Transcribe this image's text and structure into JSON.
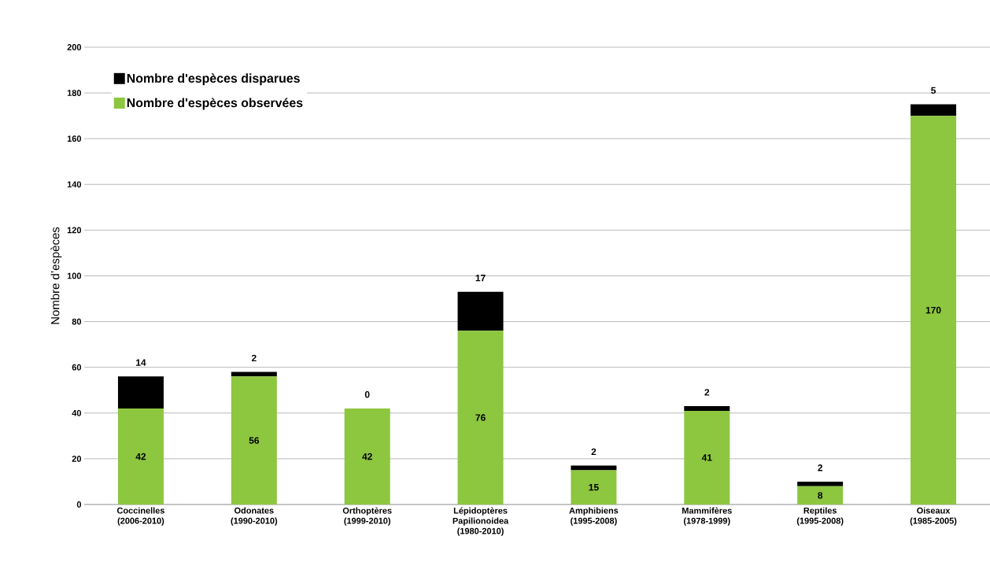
{
  "chart_data": {
    "type": "bar",
    "stacked": true,
    "ylabel": "Nombre d’espèces",
    "categories": [
      "Coccinelles (2006-2010)",
      "Odonates (1990-2010)",
      "Orthoptères (1999-2010)",
      "Lépidoptères Papilionoidea (1980-2010)",
      "Amphibiens (1995-2008)",
      "Mammifères (1978-1999)",
      "Reptiles (1995-2008)",
      "Oiseaux (1985-2005)"
    ],
    "series": [
      {
        "name": "Nombre d'espèces observées",
        "color": "#8dc63f",
        "values": [
          42,
          56,
          42,
          76,
          15,
          41,
          8,
          170
        ]
      },
      {
        "name": "Nombre d'espèces disparues",
        "color": "#000000",
        "values": [
          14,
          2,
          0,
          17,
          2,
          2,
          2,
          5
        ]
      }
    ],
    "ylim": [
      0,
      200
    ],
    "yticks": [
      0,
      20,
      40,
      60,
      80,
      100,
      120,
      140,
      160,
      180,
      200
    ],
    "grid": "y",
    "legend": "top left",
    "data_labels": true
  }
}
